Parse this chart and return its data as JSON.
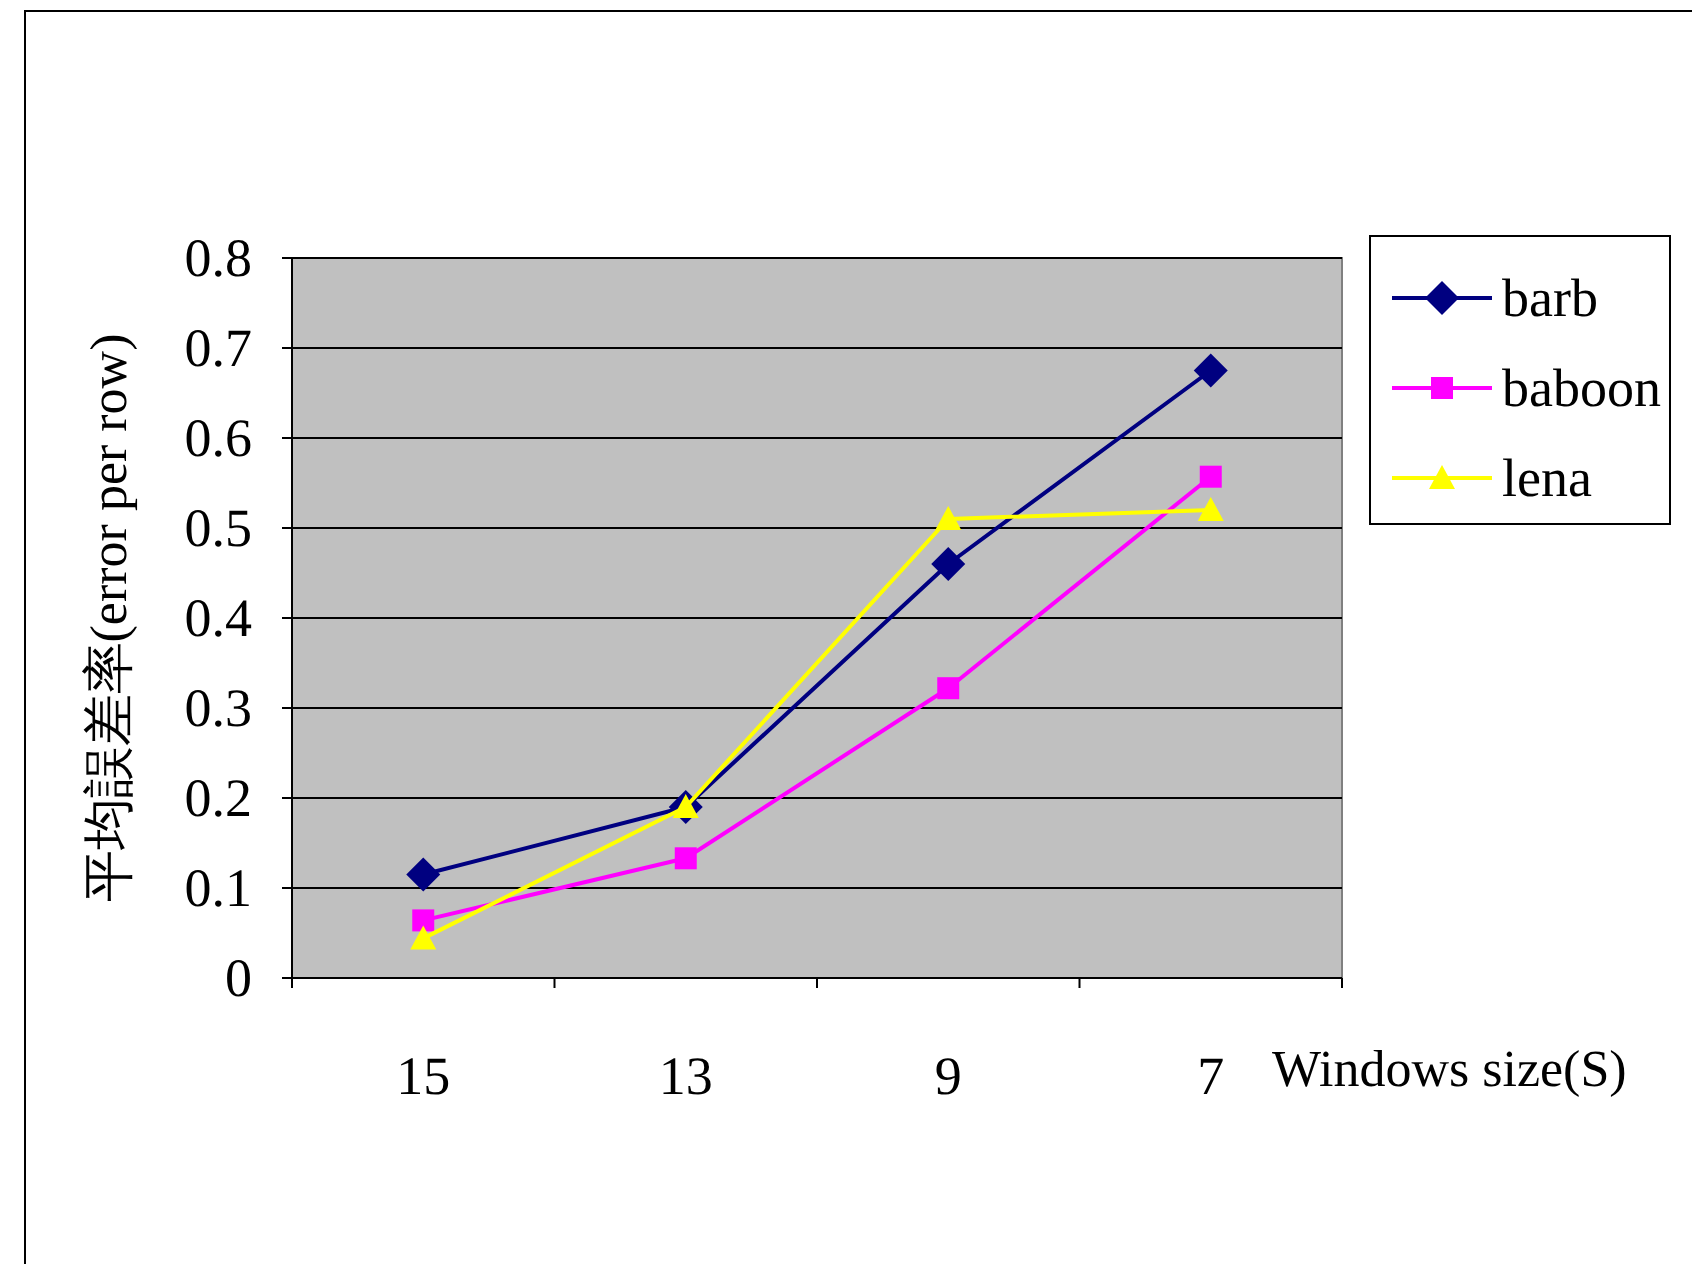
{
  "chart_data": {
    "type": "line",
    "xlabel": "Windows size(S)",
    "ylabel": "平均誤差率(error per row)",
    "categories": [
      "15",
      "13",
      "9",
      "7"
    ],
    "ylim": [
      0,
      0.8
    ],
    "yticks": [
      0,
      0.1,
      0.2,
      0.3,
      0.4,
      0.5,
      0.6,
      0.7,
      0.8
    ],
    "grid": "y",
    "legend": "right",
    "series": [
      {
        "name": "barb",
        "color": "#000080",
        "marker": "diamond",
        "values": [
          0.115,
          0.19,
          0.46,
          0.675
        ]
      },
      {
        "name": "baboon",
        "color": "#ff00ff",
        "marker": "square",
        "values": [
          0.064,
          0.133,
          0.322,
          0.557
        ]
      },
      {
        "name": "lena",
        "color": "#ffff00",
        "marker": "triangle",
        "values": [
          0.044,
          0.19,
          0.51,
          0.52
        ]
      }
    ]
  }
}
